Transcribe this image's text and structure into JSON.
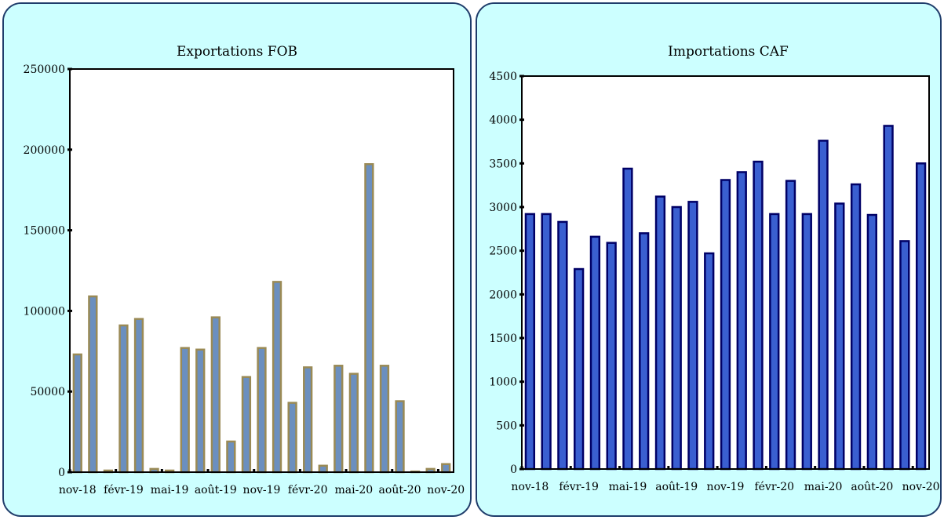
{
  "chart_data": [
    {
      "type": "bar",
      "title": "Exportations  FOB",
      "background_color": "#ccffff",
      "plot_background_color": "#ffffff",
      "bar_fill_color": "#6b8fbf",
      "bar_edge_color": "#9a8a55",
      "categories": [
        "nov-18",
        "déc-18",
        "janv-19",
        "févr-19",
        "mars-19",
        "avr-19",
        "mai-19",
        "juin-19",
        "juil-19",
        "août-19",
        "sept-19",
        "oct-19",
        "nov-19",
        "déc-19",
        "janv-20",
        "févr-20",
        "mars-20",
        "avr-20",
        "mai-20",
        "juin-20",
        "juil-20",
        "août-20",
        "sept-20",
        "oct-20",
        "nov-20"
      ],
      "values": [
        73000,
        109000,
        1000,
        91000,
        95000,
        2000,
        1000,
        77000,
        76000,
        96000,
        19000,
        59000,
        77000,
        118000,
        43000,
        65000,
        4000,
        66000,
        61000,
        191000,
        66000,
        44000,
        0,
        2000,
        5000
      ],
      "tick_labels": [
        "nov-18",
        "févr-19",
        "mai-19",
        "août-19",
        "nov-19",
        "févr-20",
        "mai-20",
        "août-20",
        "nov-20"
      ],
      "ylim": [
        0,
        250000
      ],
      "yticks": [
        0,
        50000,
        100000,
        150000,
        200000,
        250000
      ],
      "xlabel": "",
      "ylabel": ""
    },
    {
      "type": "bar",
      "title": "Importations CAF",
      "background_color": "#ccffff",
      "plot_background_color": "#ffffff",
      "bar_fill_color": "#3a5fd0",
      "bar_edge_color": "#000066",
      "categories": [
        "nov-18",
        "déc-18",
        "janv-19",
        "févr-19",
        "mars-19",
        "avr-19",
        "mai-19",
        "juin-19",
        "juil-19",
        "août-19",
        "sept-19",
        "oct-19",
        "nov-19",
        "déc-19",
        "janv-20",
        "févr-20",
        "mars-20",
        "avr-20",
        "mai-20",
        "juin-20",
        "juil-20",
        "août-20",
        "sept-20",
        "oct-20",
        "nov-20"
      ],
      "values": [
        2920,
        2920,
        2830,
        2290,
        2660,
        2590,
        3440,
        2700,
        3120,
        3000,
        3060,
        2470,
        3310,
        3400,
        3520,
        2920,
        3300,
        2920,
        3760,
        3040,
        3260,
        2910,
        3930,
        2610,
        3500
      ],
      "tick_labels": [
        "nov-18",
        "févr-19",
        "mai-19",
        "août-19",
        "nov-19",
        "févr-20",
        "mai-20",
        "août-20",
        "nov-20"
      ],
      "ylim": [
        0,
        4500
      ],
      "yticks": [
        0,
        500,
        1000,
        1500,
        2000,
        2500,
        3000,
        3500,
        4000,
        4500
      ],
      "xlabel": "",
      "ylabel": ""
    }
  ]
}
